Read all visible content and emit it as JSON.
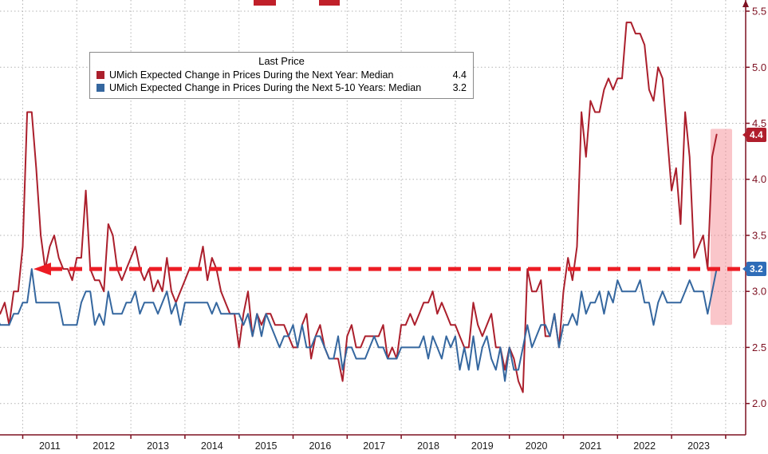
{
  "chart_data": {
    "type": "line",
    "frequency": "monthly",
    "legend": {
      "title": "Last Price",
      "entries": [
        {
          "label": "UMich Expected Change in Prices During the Next Year: Median",
          "value": "4.4",
          "color": "#ab1f2c"
        },
        {
          "label": "UMich Expected Change in Prices During the Next 5-10 Years: Median",
          "value": "3.2",
          "color": "#35679f"
        }
      ]
    },
    "x_ticks": [
      2011,
      2012,
      2013,
      2014,
      2015,
      2016,
      2017,
      2018,
      2019,
      2020,
      2021,
      2022,
      2023
    ],
    "x_grid_years": [
      2011,
      2012,
      2013,
      2014,
      2015,
      2016,
      2017,
      2018,
      2019,
      2020,
      2021,
      2022,
      2023,
      2024
    ],
    "y_ticks": [
      2.0,
      2.5,
      3.0,
      3.5,
      4.0,
      4.5,
      5.0,
      5.5
    ],
    "xlim": [
      2010.58,
      2024.37
    ],
    "ylim": [
      1.72,
      5.6
    ],
    "grid_style": "dotted",
    "axis_color": "#7d1021",
    "x_label_color": "#1c1c1c",
    "series": [
      {
        "name": "UMich Expected Change in Prices During the Next Year: Median",
        "color": "#ab1f2c",
        "start_x": 2010.5,
        "last_value": 4.4,
        "values": [
          2.9,
          2.8,
          2.9,
          2.7,
          3.0,
          3.0,
          3.4,
          4.6,
          4.6,
          4.1,
          3.5,
          3.2,
          3.4,
          3.5,
          3.3,
          3.2,
          3.2,
          3.1,
          3.3,
          3.3,
          3.9,
          3.2,
          3.1,
          3.1,
          3.0,
          3.6,
          3.5,
          3.2,
          3.1,
          3.2,
          3.3,
          3.4,
          3.2,
          3.1,
          3.2,
          3.0,
          3.1,
          3.0,
          3.3,
          3.0,
          2.9,
          3.0,
          3.1,
          3.2,
          3.2,
          3.2,
          3.4,
          3.1,
          3.3,
          3.2,
          3.0,
          2.9,
          2.8,
          2.8,
          2.5,
          2.8,
          3.0,
          2.6,
          2.8,
          2.7,
          2.8,
          2.8,
          2.7,
          2.7,
          2.7,
          2.6,
          2.5,
          2.5,
          2.7,
          2.8,
          2.4,
          2.6,
          2.7,
          2.5,
          2.4,
          2.4,
          2.4,
          2.2,
          2.6,
          2.7,
          2.5,
          2.5,
          2.6,
          2.6,
          2.6,
          2.6,
          2.7,
          2.4,
          2.5,
          2.4,
          2.7,
          2.7,
          2.8,
          2.7,
          2.8,
          2.9,
          2.9,
          3.0,
          2.8,
          2.9,
          2.8,
          2.7,
          2.7,
          2.6,
          2.5,
          2.5,
          2.9,
          2.7,
          2.6,
          2.7,
          2.8,
          2.5,
          2.5,
          2.3,
          2.5,
          2.4,
          2.2,
          2.1,
          3.2,
          3.0,
          3.0,
          3.1,
          2.6,
          2.6,
          2.8,
          2.5,
          3.0,
          3.3,
          3.1,
          3.4,
          4.6,
          4.2,
          4.7,
          4.6,
          4.6,
          4.8,
          4.9,
          4.8,
          4.9,
          4.9,
          5.4,
          5.4,
          5.3,
          5.3,
          5.2,
          4.8,
          4.7,
          5.0,
          4.9,
          4.4,
          3.9,
          4.1,
          3.6,
          4.6,
          4.2,
          3.3,
          3.4,
          3.5,
          3.2,
          4.2,
          4.4
        ]
      },
      {
        "name": "UMich Expected Change in Prices During the Next 5-10 Years: Median",
        "color": "#35679f",
        "start_x": 2010.5,
        "last_value": 3.2,
        "values": [
          2.8,
          2.7,
          2.7,
          2.7,
          2.8,
          2.8,
          2.9,
          2.9,
          3.2,
          2.9,
          2.9,
          2.9,
          2.9,
          2.9,
          2.9,
          2.7,
          2.7,
          2.7,
          2.7,
          2.9,
          3.0,
          3.0,
          2.7,
          2.8,
          2.7,
          3.0,
          2.8,
          2.8,
          2.8,
          2.9,
          2.9,
          3.0,
          2.8,
          2.9,
          2.9,
          2.9,
          2.8,
          2.9,
          3.0,
          2.8,
          2.9,
          2.7,
          2.9,
          2.9,
          2.9,
          2.9,
          2.9,
          2.9,
          2.8,
          2.9,
          2.8,
          2.8,
          2.8,
          2.8,
          2.8,
          2.7,
          2.8,
          2.6,
          2.8,
          2.6,
          2.8,
          2.7,
          2.6,
          2.5,
          2.6,
          2.6,
          2.7,
          2.5,
          2.7,
          2.5,
          2.5,
          2.6,
          2.6,
          2.5,
          2.4,
          2.4,
          2.6,
          2.3,
          2.5,
          2.5,
          2.4,
          2.4,
          2.4,
          2.5,
          2.6,
          2.5,
          2.5,
          2.4,
          2.4,
          2.4,
          2.5,
          2.5,
          2.5,
          2.5,
          2.5,
          2.6,
          2.4,
          2.6,
          2.5,
          2.4,
          2.6,
          2.5,
          2.6,
          2.3,
          2.5,
          2.3,
          2.6,
          2.3,
          2.5,
          2.6,
          2.4,
          2.3,
          2.5,
          2.2,
          2.5,
          2.3,
          2.3,
          2.5,
          2.7,
          2.5,
          2.6,
          2.7,
          2.7,
          2.6,
          2.8,
          2.5,
          2.7,
          2.7,
          2.8,
          2.7,
          3.0,
          2.8,
          2.9,
          2.9,
          3.0,
          2.8,
          3.0,
          2.9,
          3.1,
          3.0,
          3.0,
          3.0,
          3.0,
          3.1,
          2.9,
          2.9,
          2.7,
          2.9,
          3.0,
          2.9,
          2.9,
          2.9,
          2.9,
          3.0,
          3.1,
          3.0,
          3.0,
          3.0,
          2.8,
          3.0,
          3.2
        ]
      }
    ],
    "annotations": {
      "arrow": {
        "y": 3.2,
        "color": "#ed1c24",
        "style": "dashed",
        "direction": "left"
      },
      "highlight_band": {
        "x_start": 2023.72,
        "x_end": 2024.12,
        "y_top": 4.45,
        "y_bottom": 2.7,
        "color": "rgba(244,128,138,0.45)"
      },
      "badges": [
        {
          "value": "4.4",
          "y": 4.4,
          "color": "#b01e2c"
        },
        {
          "value": "3.2",
          "y": 3.2,
          "color": "#2f6db8"
        }
      ]
    }
  }
}
